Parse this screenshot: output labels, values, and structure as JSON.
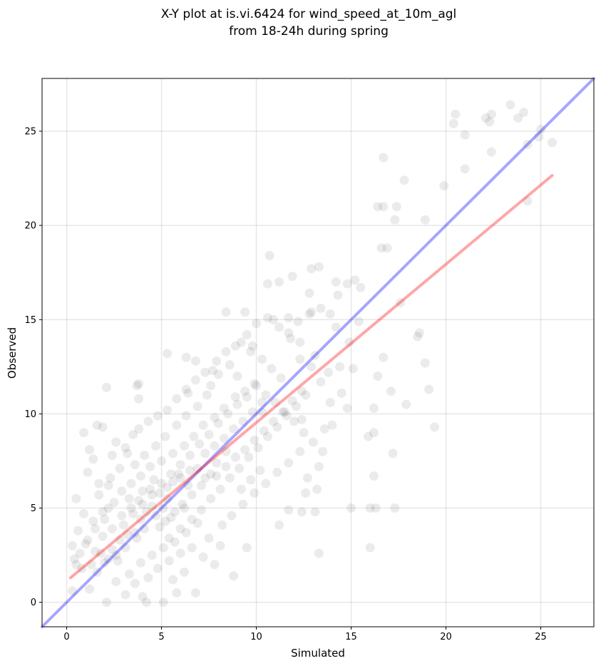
{
  "chart_data": {
    "type": "scatter",
    "title": [
      "X-Y plot at is.vi.6424 for wind_speed_at_10m_agl",
      "from 18-24h during spring"
    ],
    "xlabel": "Simulated",
    "ylabel": "Observed",
    "xlim": [
      -1.3,
      27.8
    ],
    "ylim": [
      -1.3,
      27.8
    ],
    "xticks": [
      0,
      5,
      10,
      15,
      20,
      25
    ],
    "yticks": [
      0,
      5,
      10,
      15,
      20,
      25
    ],
    "grid": true,
    "point_color": "#000000",
    "point_alpha": 0.08,
    "identity_line": {
      "color": "#0000ff",
      "alpha": 0.35,
      "x": [
        -1.3,
        27.8
      ],
      "y": [
        -1.3,
        27.8
      ]
    },
    "regression_line": {
      "color": "#ff0000",
      "alpha": 0.35,
      "x": [
        0.2,
        25.6
      ],
      "y": [
        1.3,
        22.65
      ]
    },
    "points": [
      [
        23.4,
        26.4
      ],
      [
        20.5,
        25.9
      ],
      [
        22.4,
        25.9
      ],
      [
        24.1,
        26.0
      ],
      [
        23.8,
        25.7
      ],
      [
        22.1,
        25.7
      ],
      [
        22.3,
        25.5
      ],
      [
        20.4,
        25.4
      ],
      [
        25.0,
        25.1
      ],
      [
        24.9,
        24.7
      ],
      [
        21.0,
        24.8
      ],
      [
        24.3,
        24.3
      ],
      [
        25.6,
        24.4
      ],
      [
        22.4,
        23.9
      ],
      [
        16.7,
        23.6
      ],
      [
        21.0,
        23.0
      ],
      [
        17.8,
        22.4
      ],
      [
        19.9,
        22.1
      ],
      [
        24.3,
        21.3
      ],
      [
        16.4,
        21.0
      ],
      [
        16.7,
        21.0
      ],
      [
        17.4,
        21.0
      ],
      [
        17.3,
        20.3
      ],
      [
        18.9,
        20.3
      ],
      [
        16.9,
        18.8
      ],
      [
        16.6,
        18.8
      ],
      [
        10.7,
        18.4
      ],
      [
        13.3,
        17.8
      ],
      [
        12.9,
        17.7
      ],
      [
        11.9,
        17.3
      ],
      [
        15.2,
        17.1
      ],
      [
        14.8,
        16.9
      ],
      [
        11.2,
        17.0
      ],
      [
        10.6,
        16.9
      ],
      [
        14.2,
        17.0
      ],
      [
        15.5,
        16.7
      ],
      [
        14.3,
        16.3
      ],
      [
        12.8,
        16.4
      ],
      [
        17.6,
        15.9
      ],
      [
        13.4,
        15.6
      ],
      [
        13.9,
        15.3
      ],
      [
        12.9,
        15.4
      ],
      [
        11.7,
        15.1
      ],
      [
        10.9,
        15.0
      ],
      [
        8.4,
        15.4
      ],
      [
        9.4,
        15.4
      ],
      [
        15.1,
        12.4
      ],
      [
        16.4,
        12.0
      ],
      [
        18.9,
        12.7
      ],
      [
        15.9,
        8.8
      ],
      [
        14.8,
        10.3
      ],
      [
        16.2,
        10.3
      ],
      [
        17.1,
        11.2
      ],
      [
        18.5,
        14.1
      ],
      [
        18.6,
        14.3
      ],
      [
        19.1,
        11.3
      ],
      [
        17.9,
        10.5
      ],
      [
        16.7,
        13.0
      ],
      [
        16.2,
        9.0
      ],
      [
        17.2,
        7.9
      ],
      [
        16.2,
        6.7
      ],
      [
        15.0,
        5.0
      ],
      [
        16.0,
        5.0
      ],
      [
        16.3,
        5.0
      ],
      [
        17.3,
        5.0
      ],
      [
        16.0,
        2.9
      ],
      [
        13.3,
        2.6
      ],
      [
        19.4,
        9.3
      ],
      [
        13.2,
        6.0
      ],
      [
        12.6,
        5.8
      ],
      [
        2.1,
        11.4
      ],
      [
        3.7,
        11.5
      ],
      [
        3.8,
        11.6
      ],
      [
        3.8,
        10.8
      ],
      [
        5.3,
        13.2
      ],
      [
        6.3,
        13.0
      ],
      [
        6.8,
        12.8
      ],
      [
        7.7,
        12.3
      ],
      [
        1.9,
        9.3
      ],
      [
        0.9,
        9.0
      ],
      [
        1.6,
        9.4
      ],
      [
        6.8,
        0.5
      ],
      [
        8.8,
        1.4
      ],
      [
        4.2,
        0.0
      ],
      [
        2.1,
        0.0
      ],
      [
        5.1,
        0.0
      ],
      [
        3.1,
        0.4
      ],
      [
        1.2,
        0.7
      ],
      [
        0.3,
        0.6
      ],
      [
        0.5,
        2.0
      ],
      [
        4.0,
        0.3
      ],
      [
        5.8,
        0.5
      ],
      [
        9.5,
        2.9
      ],
      [
        11.2,
        4.1
      ],
      [
        11.7,
        4.9
      ],
      [
        12.4,
        4.8
      ],
      [
        13.1,
        4.8
      ],
      [
        12.7,
        6.6
      ],
      [
        13.3,
        7.2
      ],
      [
        13.6,
        9.2
      ],
      [
        12.4,
        9.7
      ],
      [
        9.0,
        12.0
      ],
      [
        9.8,
        13.6
      ],
      [
        7.6,
        11.5
      ],
      [
        6.4,
        11.1
      ],
      [
        8.2,
        4.1
      ],
      [
        10.3,
        10.1
      ],
      [
        3.5,
        8.9
      ],
      [
        0.5,
        5.5
      ],
      [
        1.2,
        8.1
      ],
      [
        2.4,
        7.8
      ],
      [
        2.2,
        6.2
      ],
      [
        1.9,
        4.8
      ],
      [
        1.1,
        3.3
      ],
      [
        0.3,
        3.0
      ],
      [
        0.8,
        1.8
      ],
      [
        1.5,
        2.7
      ],
      [
        2.7,
        2.2
      ],
      [
        3.2,
        3.6
      ],
      [
        3.9,
        4.4
      ],
      [
        4.5,
        5.1
      ],
      [
        5.1,
        5.0
      ],
      [
        5.5,
        4.5
      ],
      [
        4.9,
        4.0
      ],
      [
        4.2,
        4.8
      ],
      [
        3.6,
        3.7
      ],
      [
        2.8,
        3.3
      ],
      [
        2.4,
        2.8
      ],
      [
        2.0,
        2.1
      ],
      [
        1.6,
        1.6
      ],
      [
        3.3,
        5.5
      ],
      [
        4.0,
        5.9
      ],
      [
        4.6,
        6.5
      ],
      [
        5.3,
        6.1
      ],
      [
        5.9,
        6.8
      ],
      [
        6.4,
        6.2
      ],
      [
        6.9,
        7.1
      ],
      [
        7.3,
        6.6
      ],
      [
        7.9,
        7.4
      ],
      [
        8.4,
        8.0
      ],
      [
        5.0,
        7.5
      ],
      [
        5.6,
        7.9
      ],
      [
        6.2,
        8.3
      ],
      [
        6.7,
        8.8
      ],
      [
        7.2,
        9.4
      ],
      [
        7.8,
        9.8
      ],
      [
        8.3,
        10.3
      ],
      [
        8.9,
        10.9
      ],
      [
        9.4,
        11.2
      ],
      [
        9.9,
        11.6
      ],
      [
        4.4,
        7.2
      ],
      [
        3.9,
        6.7
      ],
      [
        3.4,
        6.3
      ],
      [
        2.9,
        5.9
      ],
      [
        2.5,
        5.3
      ],
      [
        2.0,
        4.4
      ],
      [
        1.5,
        3.9
      ],
      [
        1.0,
        3.1
      ],
      [
        0.7,
        2.6
      ],
      [
        1.3,
        2.0
      ],
      [
        5.4,
        3.4
      ],
      [
        6.0,
        3.9
      ],
      [
        6.6,
        4.4
      ],
      [
        7.1,
        4.9
      ],
      [
        7.6,
        5.5
      ],
      [
        8.1,
        6.0
      ],
      [
        8.6,
        6.6
      ],
      [
        9.1,
        7.1
      ],
      [
        9.6,
        7.7
      ],
      [
        10.1,
        8.2
      ],
      [
        10.6,
        8.8
      ],
      [
        11.1,
        9.3
      ],
      [
        11.6,
        9.9
      ],
      [
        12.1,
        10.4
      ],
      [
        12.6,
        11.0
      ],
      [
        11.3,
        11.9
      ],
      [
        10.8,
        12.4
      ],
      [
        10.3,
        12.9
      ],
      [
        9.7,
        13.3
      ],
      [
        9.2,
        13.8
      ],
      [
        8.6,
        12.6
      ],
      [
        8.0,
        12.1
      ],
      [
        7.4,
        11.0
      ],
      [
        6.9,
        10.4
      ],
      [
        6.3,
        9.9
      ],
      [
        5.8,
        9.4
      ],
      [
        5.2,
        8.8
      ],
      [
        4.7,
        8.3
      ],
      [
        4.1,
        7.8
      ],
      [
        3.6,
        7.3
      ],
      [
        3.0,
        4.1
      ],
      [
        3.5,
        4.7
      ],
      [
        4.0,
        5.2
      ],
      [
        4.5,
        5.7
      ],
      [
        5.0,
        6.3
      ],
      [
        5.5,
        6.8
      ],
      [
        6.0,
        7.3
      ],
      [
        6.5,
        7.8
      ],
      [
        7.0,
        8.4
      ],
      [
        7.5,
        8.9
      ],
      [
        8.0,
        9.5
      ],
      [
        8.5,
        10.0
      ],
      [
        9.0,
        10.5
      ],
      [
        9.5,
        10.9
      ],
      [
        10.0,
        11.5
      ],
      [
        10.5,
        11.0
      ],
      [
        11.0,
        10.6
      ],
      [
        11.5,
        10.1
      ],
      [
        12.0,
        9.6
      ],
      [
        12.5,
        9.0
      ],
      [
        13.0,
        8.5
      ],
      [
        13.5,
        8.0
      ],
      [
        14.0,
        9.4
      ],
      [
        14.5,
        11.1
      ],
      [
        13.8,
        12.2
      ],
      [
        13.1,
        13.1
      ],
      [
        12.3,
        13.8
      ],
      [
        11.7,
        14.3
      ],
      [
        12.2,
        14.9
      ],
      [
        12.8,
        15.3
      ],
      [
        2.6,
        1.1
      ],
      [
        3.3,
        1.5
      ],
      [
        3.9,
        2.1
      ],
      [
        4.5,
        2.5
      ],
      [
        5.1,
        2.9
      ],
      [
        5.7,
        3.2
      ],
      [
        6.3,
        3.7
      ],
      [
        6.9,
        4.2
      ],
      [
        7.5,
        3.4
      ],
      [
        8.1,
        3.0
      ],
      [
        8.7,
        4.6
      ],
      [
        9.3,
        5.2
      ],
      [
        9.9,
        5.8
      ],
      [
        10.5,
        6.3
      ],
      [
        11.1,
        6.9
      ],
      [
        11.7,
        7.4
      ],
      [
        12.3,
        8.0
      ],
      [
        10.2,
        7.0
      ],
      [
        9.7,
        6.5
      ],
      [
        9.2,
        6.0
      ],
      [
        4.3,
        1.3
      ],
      [
        4.8,
        1.8
      ],
      [
        5.4,
        2.2
      ],
      [
        6.0,
        2.6
      ],
      [
        6.6,
        2.9
      ],
      [
        7.2,
        2.4
      ],
      [
        7.8,
        2.0
      ],
      [
        5.6,
        1.2
      ],
      [
        6.2,
        1.6
      ],
      [
        3.6,
        1.0
      ],
      [
        1.7,
        5.7
      ],
      [
        2.3,
        6.6
      ],
      [
        2.8,
        7.1
      ],
      [
        3.2,
        7.9
      ],
      [
        2.6,
        8.5
      ],
      [
        3.1,
        8.2
      ],
      [
        3.8,
        9.2
      ],
      [
        4.3,
        9.6
      ],
      [
        4.8,
        9.9
      ],
      [
        5.3,
        10.2
      ],
      [
        5.8,
        10.8
      ],
      [
        6.3,
        11.3
      ],
      [
        6.8,
        11.8
      ],
      [
        7.3,
        12.2
      ],
      [
        7.9,
        12.8
      ],
      [
        8.4,
        13.3
      ],
      [
        8.9,
        13.6
      ],
      [
        9.5,
        14.2
      ],
      [
        10.0,
        14.8
      ],
      [
        10.6,
        15.1
      ],
      [
        11.2,
        14.6
      ],
      [
        11.8,
        14.0
      ],
      [
        12.3,
        12.9
      ],
      [
        12.9,
        12.5
      ],
      [
        13.4,
        11.7
      ],
      [
        13.9,
        10.6
      ],
      [
        14.4,
        12.5
      ],
      [
        14.9,
        13.8
      ],
      [
        15.4,
        14.9
      ],
      [
        14.2,
        14.6
      ],
      [
        6.1,
        5.2
      ],
      [
        6.6,
        5.7
      ],
      [
        7.1,
        6.2
      ],
      [
        7.6,
        6.8
      ],
      [
        5.3,
        5.5
      ],
      [
        4.9,
        5.8
      ],
      [
        4.4,
        6.0
      ],
      [
        3.8,
        5.4
      ],
      [
        3.4,
        5.0
      ],
      [
        2.9,
        4.6
      ],
      [
        7.3,
        7.9
      ],
      [
        7.8,
        8.3
      ],
      [
        8.3,
        8.7
      ],
      [
        8.8,
        9.2
      ],
      [
        9.3,
        9.6
      ],
      [
        9.8,
        10.1
      ],
      [
        10.3,
        10.6
      ],
      [
        6.5,
        7.0
      ],
      [
        6.0,
        6.6
      ],
      [
        5.6,
        6.4
      ],
      [
        4.7,
        4.6
      ],
      [
        5.2,
        4.3
      ],
      [
        5.7,
        4.8
      ],
      [
        6.2,
        5.0
      ],
      [
        4.1,
        3.9
      ],
      [
        3.7,
        3.4
      ],
      [
        3.1,
        2.9
      ],
      [
        2.6,
        2.5
      ],
      [
        2.2,
        2.3
      ],
      [
        1.8,
        2.6
      ],
      [
        8.9,
        7.7
      ],
      [
        9.4,
        8.1
      ],
      [
        9.9,
        8.6
      ],
      [
        10.4,
        9.1
      ],
      [
        10.9,
        9.6
      ],
      [
        11.4,
        10.1
      ],
      [
        11.9,
        10.7
      ],
      [
        12.4,
        11.2
      ],
      [
        8.4,
        7.2
      ],
      [
        7.9,
        6.7
      ],
      [
        1.4,
        4.3
      ],
      [
        0.9,
        4.7
      ],
      [
        0.6,
        3.8
      ],
      [
        0.4,
        2.3
      ],
      [
        1.9,
        3.5
      ],
      [
        2.4,
        3.9
      ],
      [
        2.2,
        5.0
      ],
      [
        1.7,
        6.3
      ],
      [
        1.1,
        6.9
      ],
      [
        1.4,
        7.6
      ]
    ]
  }
}
